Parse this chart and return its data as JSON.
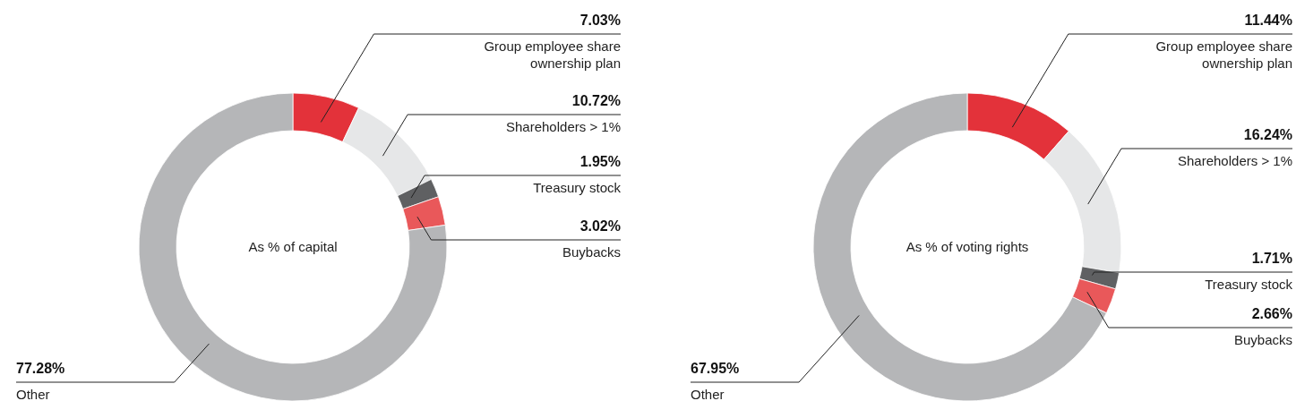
{
  "chart_data": [
    {
      "type": "donut",
      "title": "As % of capital",
      "categories": [
        "Group employee share ownership plan",
        "Shareholders > 1%",
        "Treasury stock",
        "Buybacks",
        "Other"
      ],
      "values": [
        7.03,
        10.72,
        1.95,
        3.02,
        77.28
      ],
      "value_labels": [
        "7.03%",
        "10.72%",
        "1.95%",
        "3.02%",
        "77.28%"
      ],
      "colors": [
        "#e3323a",
        "#e6e7e8",
        "#5f6062",
        "#e9585a",
        "#b5b6b8"
      ]
    },
    {
      "type": "donut",
      "title": "As % of voting rights",
      "categories": [
        "Group employee share ownership plan",
        "Shareholders > 1%",
        "Treasury stock",
        "Buybacks",
        "Other"
      ],
      "values": [
        11.44,
        16.24,
        1.71,
        2.66,
        67.95
      ],
      "value_labels": [
        "11.44%",
        "16.24%",
        "1.71%",
        "2.66%",
        "67.95%"
      ],
      "colors": [
        "#e3323a",
        "#e6e7e8",
        "#5f6062",
        "#e9585a",
        "#b5b6b8"
      ]
    }
  ]
}
